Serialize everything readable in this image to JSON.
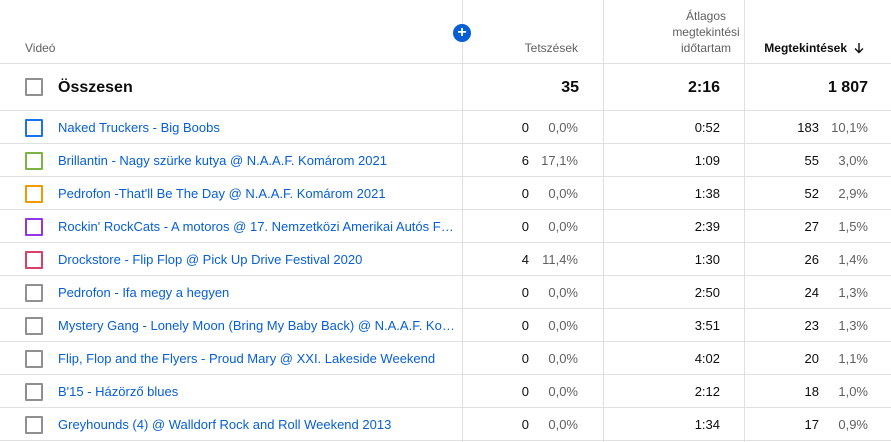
{
  "header": {
    "video": "Videó",
    "likes": "Tetszések",
    "avg_duration": "Átlagos megtekintési időtartam",
    "views": "Megtekintések",
    "sort_icon": "arrow-down-icon",
    "add_icon": "plus-icon"
  },
  "total": {
    "label": "Összesen",
    "likes": "35",
    "avg_duration": "2:16",
    "views": "1 807"
  },
  "rows": [
    {
      "title": "Naked Truckers - Big Boobs",
      "likes": "0",
      "likes_pct": "0,0%",
      "avg": "0:52",
      "views": "183",
      "views_pct": "10,1%",
      "color": "#1a73e8"
    },
    {
      "title": "Brillantin - Nagy szürke kutya @ N.A.A.F. Komárom 2021",
      "likes": "6",
      "likes_pct": "17,1%",
      "avg": "1:09",
      "views": "55",
      "views_pct": "3,0%",
      "color": "#7cb342"
    },
    {
      "title": "Pedrofon -That'll Be The Day @ N.A.A.F. Komárom 2021",
      "likes": "0",
      "likes_pct": "0,0%",
      "avg": "1:38",
      "views": "52",
      "views_pct": "2,9%",
      "color": "#f29900"
    },
    {
      "title": "Rockin' RockCats - A motoros @ 17. Nemzetközi Amerikai Autós Fe...",
      "likes": "0",
      "likes_pct": "0,0%",
      "avg": "2:39",
      "views": "27",
      "views_pct": "1,5%",
      "color": "#9334e6"
    },
    {
      "title": "Drockstore - Flip Flop @ Pick Up Drive Festival 2020",
      "likes": "4",
      "likes_pct": "11,4%",
      "avg": "1:30",
      "views": "26",
      "views_pct": "1,4%",
      "color": "#d93f6b"
    },
    {
      "title": "Pedrofon - Ifa megy a hegyen",
      "likes": "0",
      "likes_pct": "0,0%",
      "avg": "2:50",
      "views": "24",
      "views_pct": "1,3%",
      "color": "#909090"
    },
    {
      "title": "Mystery Gang - Lonely Moon (Bring My Baby Back) @ N.A.A.F. Kom...",
      "likes": "0",
      "likes_pct": "0,0%",
      "avg": "3:51",
      "views": "23",
      "views_pct": "1,3%",
      "color": "#909090"
    },
    {
      "title": "Flip, Flop and the Flyers - Proud Mary @ XXI. Lakeside Weekend",
      "likes": "0",
      "likes_pct": "0,0%",
      "avg": "4:02",
      "views": "20",
      "views_pct": "1,1%",
      "color": "#909090"
    },
    {
      "title": "B'15 - Házörző blues",
      "likes": "0",
      "likes_pct": "0,0%",
      "avg": "2:12",
      "views": "18",
      "views_pct": "1,0%",
      "color": "#909090"
    },
    {
      "title": "Greyhounds (4) @ Walldorf Rock and Roll Weekend 2013",
      "likes": "0",
      "likes_pct": "0,0%",
      "avg": "1:34",
      "views": "17",
      "views_pct": "0,9%",
      "color": "#909090"
    }
  ]
}
